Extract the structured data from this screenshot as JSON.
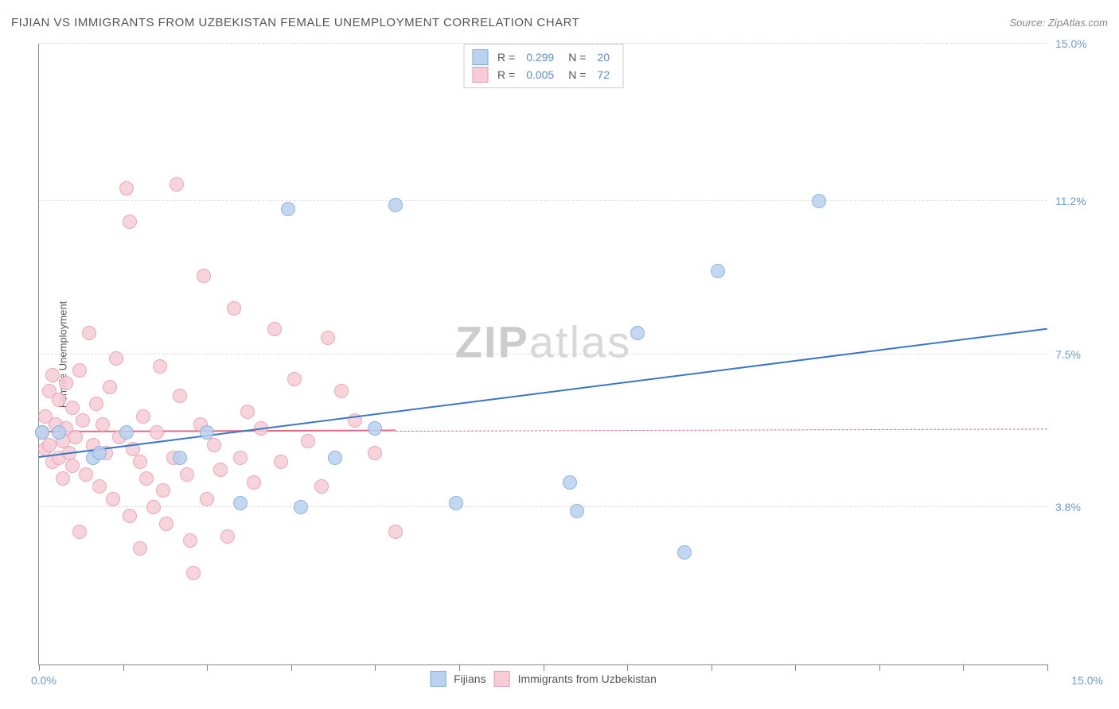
{
  "header": {
    "title": "FIJIAN VS IMMIGRANTS FROM UZBEKISTAN FEMALE UNEMPLOYMENT CORRELATION CHART",
    "source": "Source: ZipAtlas.com"
  },
  "y_axis_label": "Female Unemployment",
  "watermark": {
    "bold": "ZIP",
    "light": "atlas"
  },
  "chart": {
    "type": "scatter",
    "xlim": [
      0,
      15
    ],
    "ylim": [
      0,
      15
    ],
    "x_tick_positions": [
      0,
      1.25,
      2.5,
      3.75,
      5,
      6.25,
      7.5,
      8.75,
      10,
      11.25,
      12.5,
      13.75,
      15
    ],
    "y_gridlines": [
      3.8,
      7.5,
      11.2,
      15.0
    ],
    "y_tick_labels": [
      "3.8%",
      "7.5%",
      "11.2%",
      "15.0%"
    ],
    "x_min_label": "0.0%",
    "x_max_label": "15.0%",
    "background_color": "#ffffff",
    "grid_color": "#dddddd",
    "axis_color": "#888888",
    "point_radius": 9
  },
  "series": {
    "a": {
      "label": "Fijians",
      "fill_color": "#b9d2ee",
      "stroke_color": "#7aa9dd",
      "line_color": "#3a76c5",
      "R": "0.299",
      "N": "20",
      "trend": {
        "x1": 0,
        "y1": 5.0,
        "x2": 15,
        "y2": 8.1
      },
      "points": [
        [
          0.05,
          5.6
        ],
        [
          0.3,
          5.6
        ],
        [
          0.8,
          5.0
        ],
        [
          0.9,
          5.1
        ],
        [
          1.3,
          5.6
        ],
        [
          2.1,
          5.0
        ],
        [
          2.5,
          5.6
        ],
        [
          3.0,
          3.9
        ],
        [
          3.7,
          11.0
        ],
        [
          3.9,
          3.8
        ],
        [
          4.4,
          5.0
        ],
        [
          5.3,
          11.1
        ],
        [
          5.0,
          5.7
        ],
        [
          6.2,
          3.9
        ],
        [
          7.9,
          4.4
        ],
        [
          8.0,
          3.7
        ],
        [
          8.9,
          8.0
        ],
        [
          9.6,
          2.7
        ],
        [
          10.1,
          9.5
        ],
        [
          11.6,
          11.2
        ]
      ]
    },
    "b": {
      "label": "Immigrants from Uzbekistan",
      "fill_color": "#f6cdd6",
      "stroke_color": "#e998ab",
      "line_color": "#e06a87",
      "R": "0.005",
      "N": "72",
      "trend": {
        "x1": 0,
        "y1": 5.6,
        "x2": 15,
        "y2": 5.68
      },
      "solid_until_x": 5.3,
      "points": [
        [
          0.05,
          5.6
        ],
        [
          0.1,
          5.2
        ],
        [
          0.1,
          6.0
        ],
        [
          0.15,
          5.3
        ],
        [
          0.15,
          6.6
        ],
        [
          0.2,
          7.0
        ],
        [
          0.2,
          4.9
        ],
        [
          0.25,
          5.8
        ],
        [
          0.3,
          5.0
        ],
        [
          0.3,
          6.4
        ],
        [
          0.35,
          5.4
        ],
        [
          0.35,
          4.5
        ],
        [
          0.4,
          6.8
        ],
        [
          0.4,
          5.7
        ],
        [
          0.45,
          5.1
        ],
        [
          0.5,
          4.8
        ],
        [
          0.5,
          6.2
        ],
        [
          0.55,
          5.5
        ],
        [
          0.6,
          3.2
        ],
        [
          0.6,
          7.1
        ],
        [
          0.65,
          5.9
        ],
        [
          0.7,
          4.6
        ],
        [
          0.75,
          8.0
        ],
        [
          0.8,
          5.3
        ],
        [
          0.85,
          6.3
        ],
        [
          0.9,
          4.3
        ],
        [
          0.95,
          5.8
        ],
        [
          1.0,
          5.1
        ],
        [
          1.05,
          6.7
        ],
        [
          1.1,
          4.0
        ],
        [
          1.15,
          7.4
        ],
        [
          1.2,
          5.5
        ],
        [
          1.3,
          11.5
        ],
        [
          1.35,
          3.6
        ],
        [
          1.35,
          10.7
        ],
        [
          1.4,
          5.2
        ],
        [
          1.5,
          4.9
        ],
        [
          1.5,
          2.8
        ],
        [
          1.55,
          6.0
        ],
        [
          1.6,
          4.5
        ],
        [
          1.7,
          3.8
        ],
        [
          1.75,
          5.6
        ],
        [
          1.8,
          7.2
        ],
        [
          1.85,
          4.2
        ],
        [
          1.9,
          3.4
        ],
        [
          2.0,
          5.0
        ],
        [
          2.05,
          11.6
        ],
        [
          2.1,
          6.5
        ],
        [
          2.2,
          4.6
        ],
        [
          2.25,
          3.0
        ],
        [
          2.3,
          2.2
        ],
        [
          2.4,
          5.8
        ],
        [
          2.45,
          9.4
        ],
        [
          2.5,
          4.0
        ],
        [
          2.6,
          5.3
        ],
        [
          2.7,
          4.7
        ],
        [
          2.8,
          3.1
        ],
        [
          2.9,
          8.6
        ],
        [
          3.0,
          5.0
        ],
        [
          3.1,
          6.1
        ],
        [
          3.2,
          4.4
        ],
        [
          3.3,
          5.7
        ],
        [
          3.5,
          8.1
        ],
        [
          3.6,
          4.9
        ],
        [
          3.8,
          6.9
        ],
        [
          4.0,
          5.4
        ],
        [
          4.2,
          4.3
        ],
        [
          4.3,
          7.9
        ],
        [
          4.5,
          6.6
        ],
        [
          4.7,
          5.9
        ],
        [
          5.0,
          5.1
        ],
        [
          5.3,
          3.2
        ]
      ]
    }
  },
  "top_legend": {
    "R_label": "R =",
    "N_label": "N ="
  }
}
